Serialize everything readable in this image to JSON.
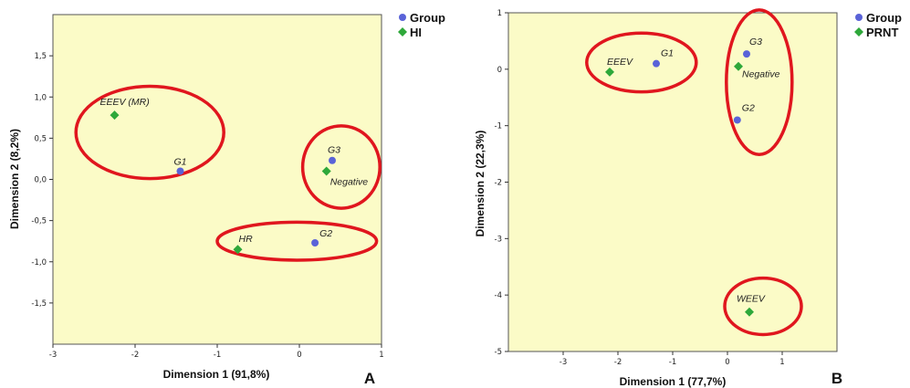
{
  "chart_data": [
    {
      "type": "scatter",
      "panel_label": "A",
      "xlabel": "Dimension 1 (91,8%)",
      "ylabel": "Dimension 2 (8,2%)",
      "xlim": [
        -3,
        1
      ],
      "ylim": [
        -2,
        2
      ],
      "xticks": [
        -3,
        -2,
        -1,
        0,
        1
      ],
      "xtick_labels": [
        "-3",
        "-2",
        "-1",
        "0",
        "1"
      ],
      "yticks": [
        1.5,
        1.0,
        0.5,
        0.0,
        -0.5,
        -1.0,
        -1.5
      ],
      "ytick_labels": [
        "1,5",
        "1,0",
        "0,5",
        "0,0",
        "-0,5",
        "-1,0",
        "-1,5"
      ],
      "grid": false,
      "legend_position": "top-right, outside plot",
      "series": [
        {
          "name": "Group",
          "marker": "circle",
          "color": "#5a63d8",
          "points": [
            {
              "label": "G1",
              "x": -1.45,
              "y": 0.1
            },
            {
              "label": "G3",
              "x": 0.4,
              "y": 0.23
            },
            {
              "label": "G2",
              "x": 0.19,
              "y": -0.77
            }
          ]
        },
        {
          "name": "HI",
          "marker": "diamond",
          "color": "#2ea83a",
          "points": [
            {
              "label": "EEEV (MR)",
              "x": -2.25,
              "y": 0.78
            },
            {
              "label": "Negative",
              "x": 0.33,
              "y": 0.1
            },
            {
              "label": "HR",
              "x": -0.75,
              "y": -0.85
            }
          ]
        }
      ],
      "annotations": [
        {
          "shape": "ellipse",
          "color": "#e0161e",
          "cx": -1.82,
          "cy": 0.57,
          "rx": 0.9,
          "ry": 0.56
        },
        {
          "shape": "ellipse",
          "color": "#e0161e",
          "cx": 0.51,
          "cy": 0.15,
          "rx": 0.47,
          "ry": 0.5
        },
        {
          "shape": "ellipse",
          "color": "#e0161e",
          "cx": -0.03,
          "cy": -0.75,
          "rx": 0.97,
          "ry": 0.23
        }
      ]
    },
    {
      "type": "scatter",
      "panel_label": "B",
      "xlabel": "Dimension 1 (77,7%)",
      "ylabel": "Dimension 2 (22,3%)",
      "xlim": [
        -4,
        2
      ],
      "ylim": [
        -5,
        1
      ],
      "xticks": [
        -3,
        -2,
        -1,
        0,
        1
      ],
      "xtick_labels": [
        "-3",
        "-2",
        "-1",
        "0",
        "1"
      ],
      "yticks": [
        1,
        0,
        -1,
        -2,
        -3,
        -4,
        -5
      ],
      "ytick_labels": [
        "1",
        "0",
        "-1",
        "-2",
        "-3",
        "-4",
        "-5"
      ],
      "grid": false,
      "legend_position": "top-right, outside plot",
      "series": [
        {
          "name": "Group",
          "marker": "circle",
          "color": "#5a63d8",
          "points": [
            {
              "label": "G1",
              "x": -1.3,
              "y": 0.1
            },
            {
              "label": "G3",
              "x": 0.35,
              "y": 0.27
            },
            {
              "label": "G2",
              "x": 0.18,
              "y": -0.9
            }
          ]
        },
        {
          "name": "PRNT",
          "marker": "diamond",
          "color": "#2ea83a",
          "points": [
            {
              "label": "EEEV",
              "x": -2.15,
              "y": -0.05
            },
            {
              "label": "Negative",
              "x": 0.2,
              "y": 0.05
            },
            {
              "label": "WEEV",
              "x": 0.4,
              "y": -4.3
            }
          ]
        }
      ],
      "annotations": [
        {
          "shape": "ellipse",
          "color": "#e0161e",
          "cx": -1.57,
          "cy": 0.12,
          "rx": 1.0,
          "ry": 0.52
        },
        {
          "shape": "ellipse",
          "color": "#e0161e",
          "cx": 0.58,
          "cy": -0.23,
          "rx": 0.6,
          "ry": 1.28
        },
        {
          "shape": "ellipse",
          "color": "#e0161e",
          "cx": 0.65,
          "cy": -4.2,
          "rx": 0.7,
          "ry": 0.5
        }
      ]
    }
  ]
}
